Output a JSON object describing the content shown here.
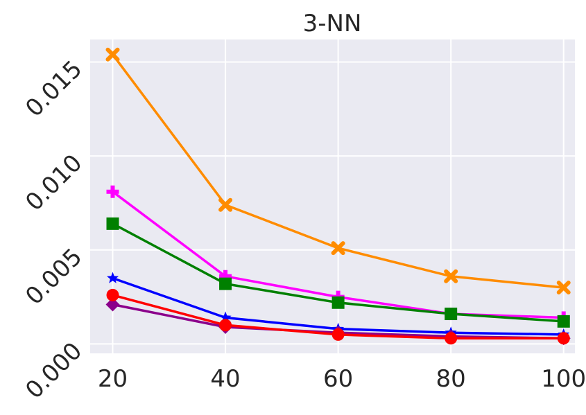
{
  "chart_data": {
    "type": "line",
    "title": "3-NN",
    "xlabel": "",
    "ylabel": "",
    "x": [
      20,
      40,
      60,
      80,
      100
    ],
    "xticks": [
      "20",
      "40",
      "60",
      "80",
      "100"
    ],
    "yticks": [
      "0.000",
      "0.005",
      "0.010",
      "0.015"
    ],
    "ytick_values": [
      0.0,
      0.005,
      0.01,
      0.015
    ],
    "xlim": [
      16,
      102
    ],
    "ylim": [
      -0.0005,
      0.0162
    ],
    "grid": true,
    "background": "#EAEAF2",
    "series": [
      {
        "color": "#FF8C00",
        "marker": "x",
        "values": [
          0.0154,
          0.0074,
          0.0051,
          0.0036,
          0.003
        ]
      },
      {
        "color": "#FF00FF",
        "marker": "plus",
        "values": [
          0.0081,
          0.0036,
          0.0025,
          0.0016,
          0.0014
        ]
      },
      {
        "color": "#008000",
        "marker": "square",
        "values": [
          0.0064,
          0.0032,
          0.0022,
          0.0016,
          0.0012
        ]
      },
      {
        "color": "#0000FF",
        "marker": "star",
        "values": [
          0.0035,
          0.0014,
          0.0008,
          0.0006,
          0.0005
        ]
      },
      {
        "color": "#8B008B",
        "marker": "diamond",
        "values": [
          0.0021,
          0.0009,
          0.0006,
          0.0004,
          0.0003
        ]
      },
      {
        "color": "#FF0000",
        "marker": "circle",
        "values": [
          0.0026,
          0.001,
          0.0005,
          0.0003,
          0.0003
        ]
      }
    ]
  }
}
